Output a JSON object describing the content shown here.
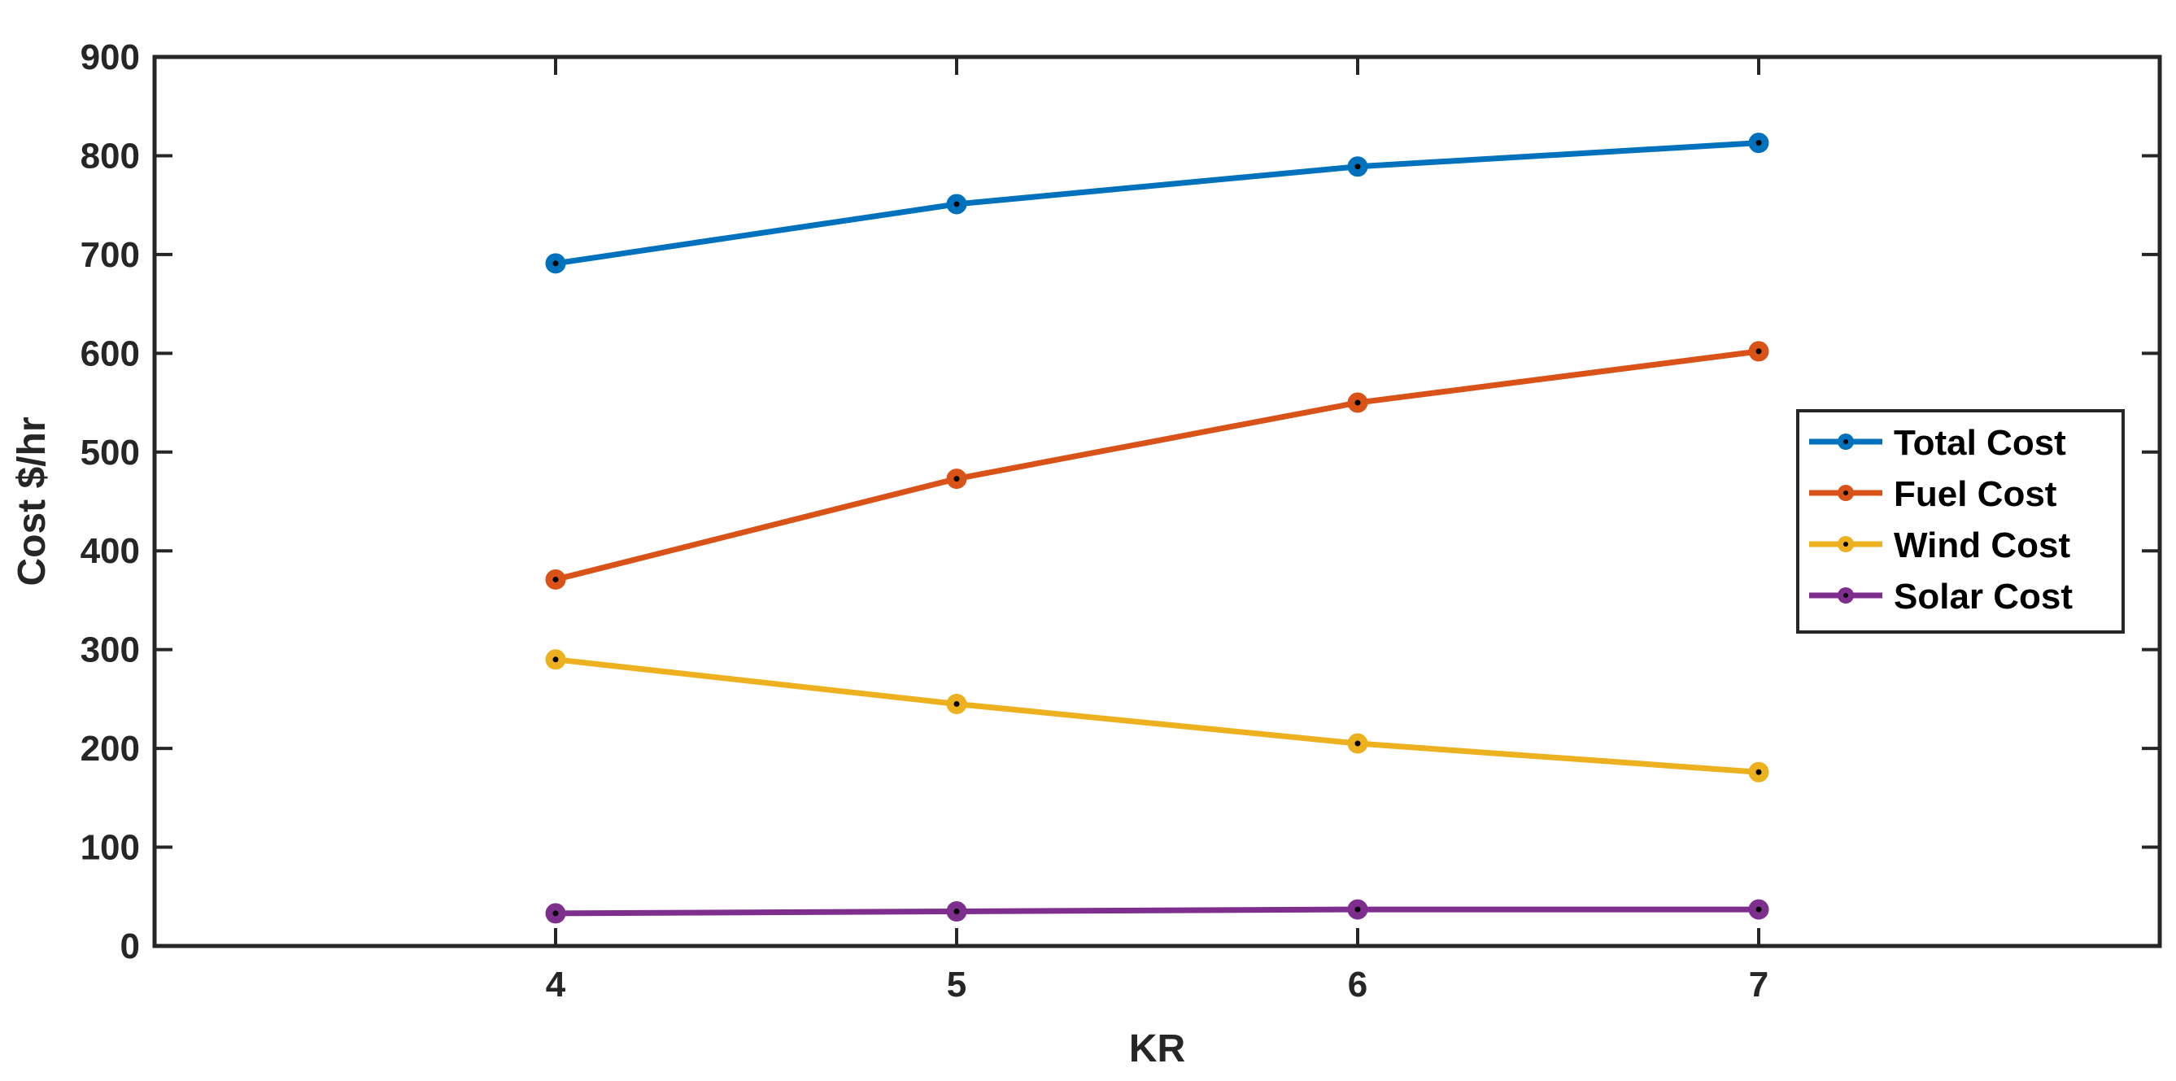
{
  "chart_data": {
    "type": "line",
    "xlabel": "KR",
    "ylabel": "Cost $/hr",
    "x": [
      4,
      5,
      6,
      7
    ],
    "xlim": [
      3,
      8
    ],
    "ylim": [
      0,
      900
    ],
    "xticks": [
      4,
      5,
      6,
      7
    ],
    "yticks": [
      0,
      100,
      200,
      300,
      400,
      500,
      600,
      700,
      800,
      900
    ],
    "grid": false,
    "legend_position": "right",
    "series": [
      {
        "name": "Total Cost",
        "color": "#0072BD",
        "values": [
          691,
          751,
          789,
          813
        ]
      },
      {
        "name": "Fuel Cost",
        "color": "#D95319",
        "values": [
          371,
          473,
          550,
          602
        ]
      },
      {
        "name": "Wind Cost",
        "color": "#EDB120",
        "values": [
          290,
          245,
          205,
          176
        ]
      },
      {
        "name": "Solar Cost",
        "color": "#7E2F8E",
        "values": [
          33,
          35,
          37,
          37
        ]
      }
    ]
  }
}
